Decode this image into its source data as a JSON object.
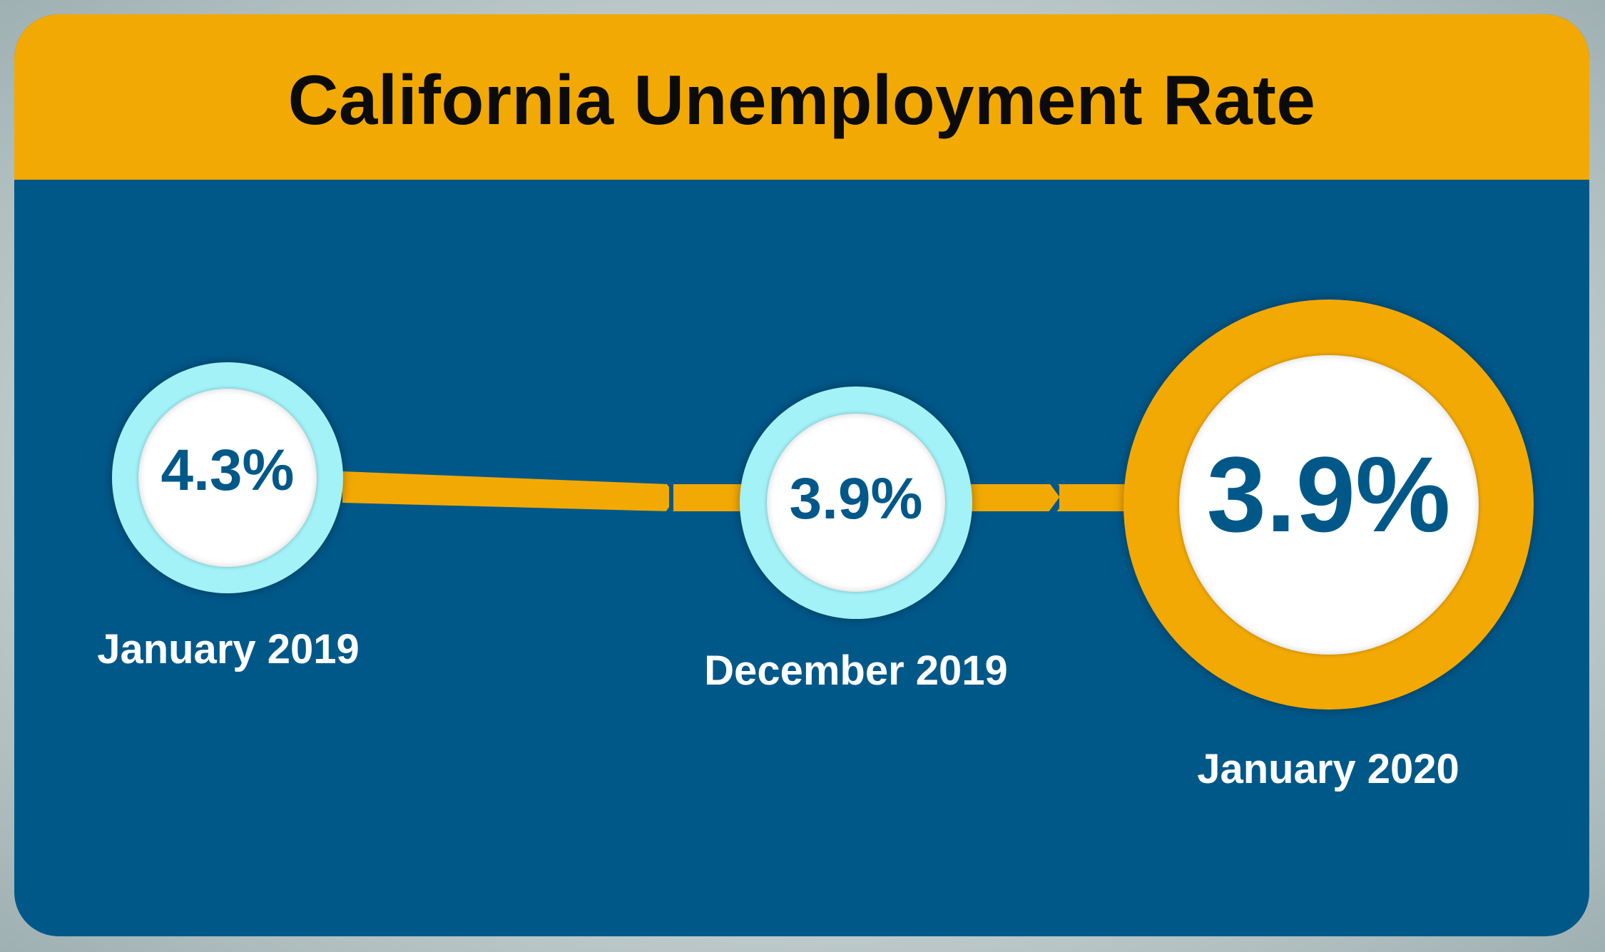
{
  "title": "California Unemployment Rate",
  "colors": {
    "header_band": "#f3a903",
    "panel": "#005889",
    "cyan_ring": "#a2f2f8",
    "gold_ring": "#f3a903",
    "rate_text": "#005889",
    "label_text": "#ffffff"
  },
  "milestones": [
    {
      "date": "January 2019",
      "rate": "4.3%",
      "ring": "cyan"
    },
    {
      "date": "December 2019",
      "rate": "3.9%",
      "ring": "cyan"
    },
    {
      "date": "January 2020",
      "rate": "3.9%",
      "ring": "gold"
    }
  ]
}
